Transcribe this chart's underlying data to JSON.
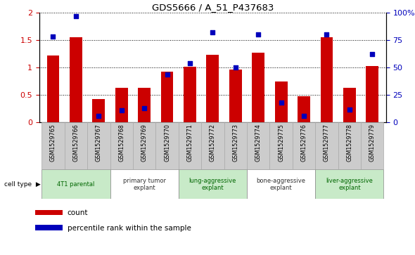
{
  "title": "GDS5666 / A_51_P437683",
  "samples": [
    "GSM1529765",
    "GSM1529766",
    "GSM1529767",
    "GSM1529768",
    "GSM1529769",
    "GSM1529770",
    "GSM1529771",
    "GSM1529772",
    "GSM1529773",
    "GSM1529774",
    "GSM1529775",
    "GSM1529776",
    "GSM1529777",
    "GSM1529778",
    "GSM1529779"
  ],
  "red_values": [
    1.22,
    1.55,
    0.42,
    0.63,
    0.63,
    0.93,
    1.02,
    1.23,
    0.97,
    1.27,
    0.75,
    0.48,
    1.55,
    0.63,
    1.03
  ],
  "blue_pct": [
    78,
    97,
    6,
    11,
    13,
    44,
    54,
    82,
    50,
    80,
    18,
    6,
    80,
    12,
    62
  ],
  "ylim_left": [
    0,
    2
  ],
  "ylim_right": [
    0,
    100
  ],
  "yticks_left": [
    0,
    0.5,
    1.0,
    1.5,
    2.0
  ],
  "ytick_labels_left": [
    "0",
    "0.5",
    "1",
    "1.5",
    "2"
  ],
  "yticks_right": [
    0,
    25,
    50,
    75,
    100
  ],
  "ytick_labels_right": [
    "0",
    "25",
    "50",
    "75",
    "100%"
  ],
  "cell_groups": [
    {
      "label": "4T1 parental",
      "start": 0,
      "end": 2,
      "color": "#c8eac8"
    },
    {
      "label": "primary tumor\nexplant",
      "start": 3,
      "end": 5,
      "color": "#ffffff"
    },
    {
      "label": "lung-aggressive\nexplant",
      "start": 6,
      "end": 8,
      "color": "#c8eac8"
    },
    {
      "label": "bone-aggressive\nexplant",
      "start": 9,
      "end": 11,
      "color": "#ffffff"
    },
    {
      "label": "liver-aggressive\nexplant",
      "start": 12,
      "end": 14,
      "color": "#c8eac8"
    }
  ],
  "bar_color": "#cc0000",
  "dot_color": "#0000bb",
  "bg_color": "#ffffff",
  "tick_color_left": "#cc0000",
  "tick_color_right": "#0000bb",
  "bar_width": 0.55,
  "sample_box_color": "#cccccc",
  "sample_box_edge": "#aaaaaa",
  "legend_items": [
    {
      "label": "count",
      "color": "#cc0000"
    },
    {
      "label": "percentile rank within the sample",
      "color": "#0000bb"
    }
  ],
  "n_samples": 15
}
